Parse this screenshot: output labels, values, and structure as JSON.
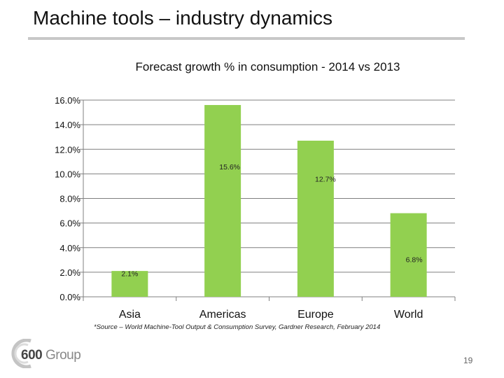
{
  "slide": {
    "title": "Machine tools – industry dynamics",
    "source": "*Source – World Machine-Tool Output & Consumption Survey, Gardner Research, February 2014",
    "page_number": "19",
    "logo_text": "600Group"
  },
  "colors": {
    "bar": "#92d050",
    "grid": "#7f7f7f",
    "axis": "#808080",
    "title_rule": "#c8c8c8"
  },
  "chart_data": {
    "type": "bar",
    "title": "Forecast growth % in consumption -  2014 vs 2013",
    "xlabel": "",
    "ylabel": "",
    "categories": [
      "Asia",
      "Americas",
      "Europe",
      "World"
    ],
    "values": [
      2.1,
      15.6,
      12.7,
      6.8
    ],
    "data_labels": [
      "2.1%",
      "15.6%",
      "12.7%",
      "6.8%"
    ],
    "ylim": [
      0,
      16
    ],
    "yticks": [
      0,
      2,
      4,
      6,
      8,
      10,
      12,
      14,
      16
    ],
    "ytick_labels": [
      "0.0%",
      "2.0%",
      "4.0%",
      "6.0%",
      "8.0%",
      "10.0%",
      "12.0%",
      "14.0%",
      "16.0%"
    ],
    "grid": true,
    "legend": "none"
  }
}
